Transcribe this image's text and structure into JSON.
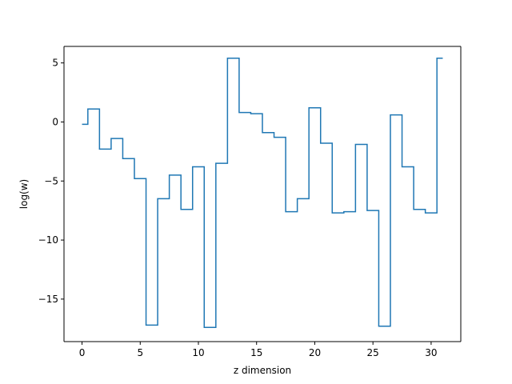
{
  "chart_data": {
    "type": "line",
    "drawstyle": "steps-mid",
    "title": "",
    "xlabel": "z dimension",
    "ylabel": "log(w)",
    "xlim": [
      -1.55,
      32.55
    ],
    "ylim": [
      -18.6,
      6.4
    ],
    "xticks": [
      0,
      5,
      10,
      15,
      20,
      25,
      30
    ],
    "xtick_labels": [
      "0",
      "5",
      "10",
      "15",
      "20",
      "25",
      "30"
    ],
    "yticks": [
      5,
      0,
      -5,
      -10,
      -15
    ],
    "ytick_labels": [
      "5",
      "0",
      "−5",
      "−10",
      "−15"
    ],
    "grid": false,
    "legend": "none",
    "color": "#1f77b4",
    "series": [
      {
        "x": [
          0,
          1,
          2,
          3,
          4,
          5,
          6,
          7,
          8,
          9,
          10,
          11,
          12,
          13,
          14,
          15,
          16,
          17,
          18,
          19,
          20,
          21,
          22,
          23,
          24,
          25,
          26,
          27,
          28,
          29,
          30,
          31
        ],
        "values": [
          -0.2,
          1.1,
          -2.3,
          -1.4,
          -3.1,
          -4.8,
          -17.2,
          -6.5,
          -4.5,
          -7.4,
          -3.8,
          -17.4,
          -3.5,
          5.4,
          0.8,
          0.7,
          -0.9,
          -1.3,
          -7.6,
          -6.5,
          1.2,
          -1.8,
          -7.7,
          -7.6,
          -1.9,
          -7.5,
          -17.3,
          0.6,
          -3.8,
          -7.4,
          -7.7,
          5.4
        ]
      }
    ]
  }
}
